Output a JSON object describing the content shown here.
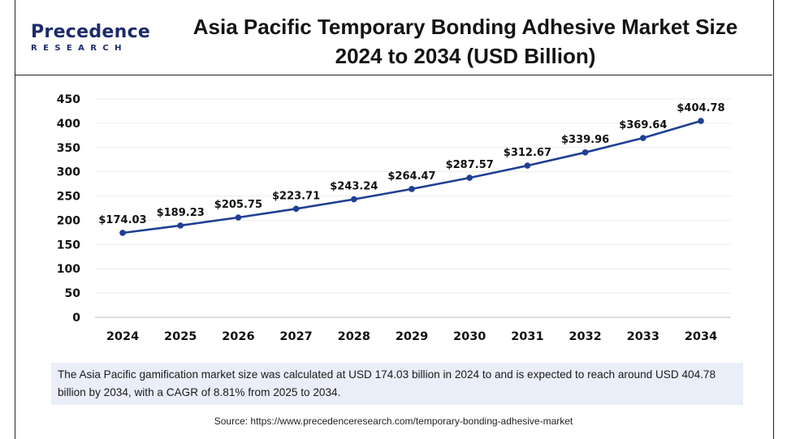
{
  "logo": {
    "word": "Precedence",
    "sub": "RESEARCH"
  },
  "title": {
    "line1": "Asia Pacific Temporary Bonding Adhesive Market Size",
    "line2": "2024 to 2034 (USD Billion)"
  },
  "chart_data": {
    "type": "line",
    "title": "Asia Pacific Temporary Bonding Adhesive Market Size 2024 to 2034 (USD Billion)",
    "xlabel": "",
    "ylabel": "",
    "categories": [
      "2024",
      "2025",
      "2026",
      "2027",
      "2028",
      "2029",
      "2030",
      "2031",
      "2032",
      "2033",
      "2034"
    ],
    "values": [
      174.03,
      189.23,
      205.75,
      223.71,
      243.24,
      264.47,
      287.57,
      312.67,
      339.96,
      369.64,
      404.78
    ],
    "data_labels": [
      "$174.03",
      "$189.23",
      "$205.75",
      "$223.71",
      "$243.24",
      "$264.47",
      "$287.57",
      "$312.67",
      "$339.96",
      "$369.64",
      "$404.78"
    ],
    "ylim": [
      0,
      450
    ],
    "yticks": [
      0,
      50,
      100,
      150,
      200,
      250,
      300,
      350,
      400,
      450
    ],
    "grid": true,
    "legend": "none",
    "line_color": "#1f3f93"
  },
  "note": "The Asia Pacific gamification market size was calculated at USD 174.03 billion in 2024 to and is expected to reach around USD 404.78 billion by 2034, with a CAGR of 8.81% from 2025 to 2034.",
  "source": "Source: https://www.precedenceresearch.com/temporary-bonding-adhesive-market"
}
